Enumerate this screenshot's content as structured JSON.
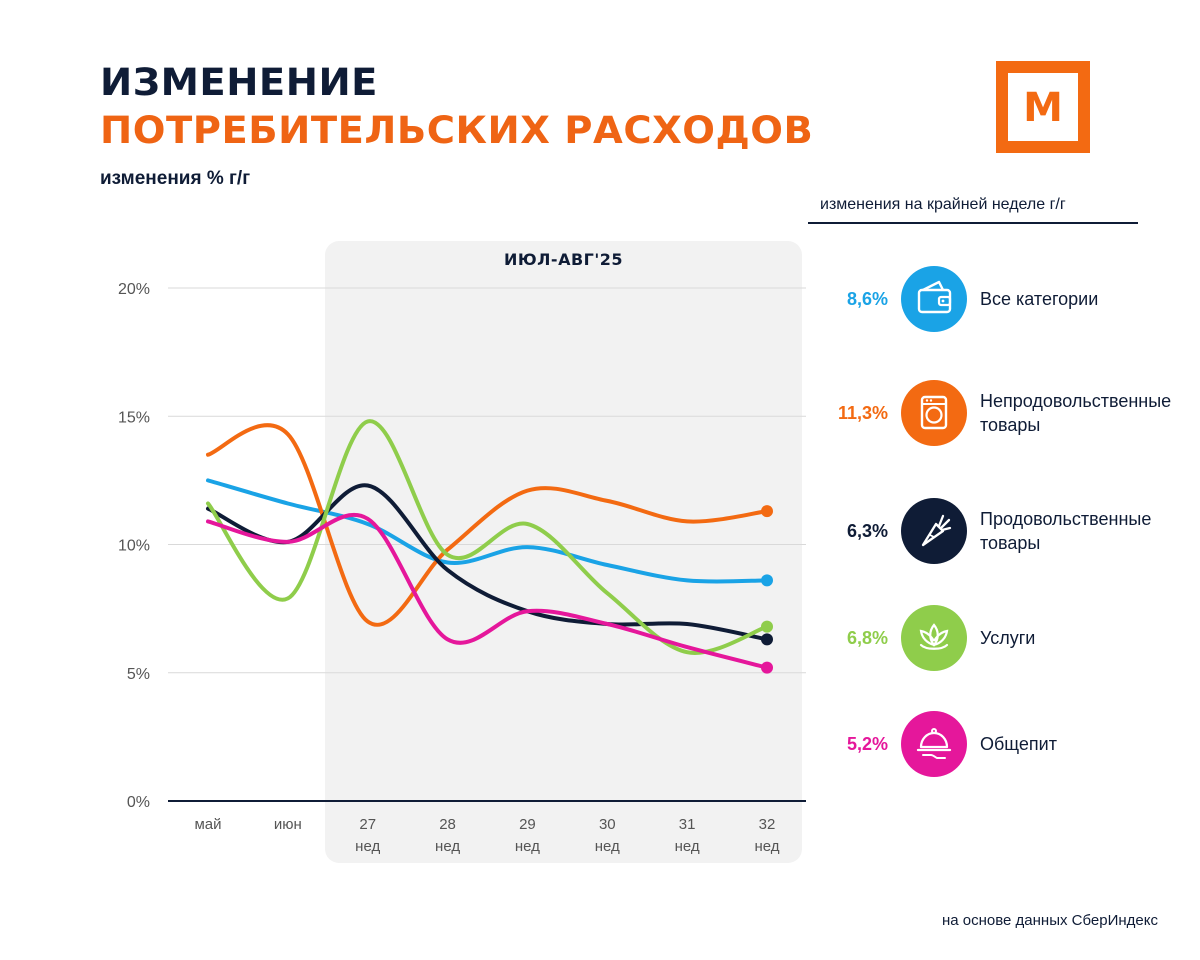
{
  "header": {
    "title_line1": "ИЗМЕНЕНИЕ",
    "title_line2": "ПОТРЕБИТЕЛЬСКИХ РАСХОДОВ",
    "subtitle": "изменения % г/г",
    "logo_letter": "М"
  },
  "panel": {
    "label": "ИЮЛ-АВГ'25"
  },
  "legend": {
    "header": "изменения на крайней неделе г/г",
    "items": [
      {
        "value": "8,6%",
        "label": "Все категории",
        "color": "#1aa3e6",
        "icon": "wallet-icon"
      },
      {
        "value": "11,3%",
        "label": "Непродовольственные товары",
        "color": "#f36a12",
        "icon": "washing-machine-icon"
      },
      {
        "value": "6,3%",
        "label": "Продовольственные товары",
        "color": "#0f1c36",
        "icon": "carrot-icon"
      },
      {
        "value": "6,8%",
        "label": "Услуги",
        "color": "#8fcd4b",
        "icon": "lotus-icon"
      },
      {
        "value": "5,2%",
        "label": "Общепит",
        "color": "#e5179b",
        "icon": "cloche-icon"
      }
    ]
  },
  "chart_data": {
    "type": "line",
    "title": "Изменение потребительских расходов",
    "ylabel": "изменения % г/г",
    "xlabel": "",
    "categories": [
      "май",
      "июн",
      "27 нед",
      "28 нед",
      "29 нед",
      "30 нед",
      "31 нед",
      "32 нед"
    ],
    "x_tick_lines": [
      [
        "май"
      ],
      [
        "июн"
      ],
      [
        "27",
        "нед"
      ],
      [
        "28",
        "нед"
      ],
      [
        "29",
        "нед"
      ],
      [
        "30",
        "нед"
      ],
      [
        "31",
        "нед"
      ],
      [
        "32",
        "нед"
      ]
    ],
    "ylim": [
      0,
      20
    ],
    "yticks": [
      0,
      5,
      10,
      15,
      20
    ],
    "ytick_labels": [
      "0%",
      "5%",
      "10%",
      "15%",
      "20%"
    ],
    "grid": true,
    "highlight_period": {
      "label": "ИЮЛ-АВГ'25",
      "from": "27 нед",
      "to": "32 нед"
    },
    "series": [
      {
        "name": "Все категории",
        "color": "#1aa3e6",
        "values": [
          12.5,
          11.6,
          10.8,
          9.3,
          9.9,
          9.2,
          8.6,
          8.6
        ]
      },
      {
        "name": "Непродовольственные товары",
        "color": "#f36a12",
        "values": [
          13.5,
          14.3,
          7.0,
          9.8,
          12.1,
          11.7,
          10.9,
          11.3
        ]
      },
      {
        "name": "Продовольственные товары",
        "color": "#0f1c36",
        "values": [
          11.4,
          10.1,
          12.3,
          9.0,
          7.4,
          6.9,
          6.9,
          6.3
        ]
      },
      {
        "name": "Услуги",
        "color": "#8fcd4b",
        "values": [
          11.6,
          7.9,
          14.8,
          9.6,
          10.8,
          8.1,
          5.8,
          6.8
        ]
      },
      {
        "name": "Общепит",
        "color": "#e5179b",
        "values": [
          10.9,
          10.1,
          11.0,
          6.3,
          7.4,
          6.9,
          6.0,
          5.2
        ]
      }
    ]
  },
  "source": "на основе данных СберИндекс"
}
